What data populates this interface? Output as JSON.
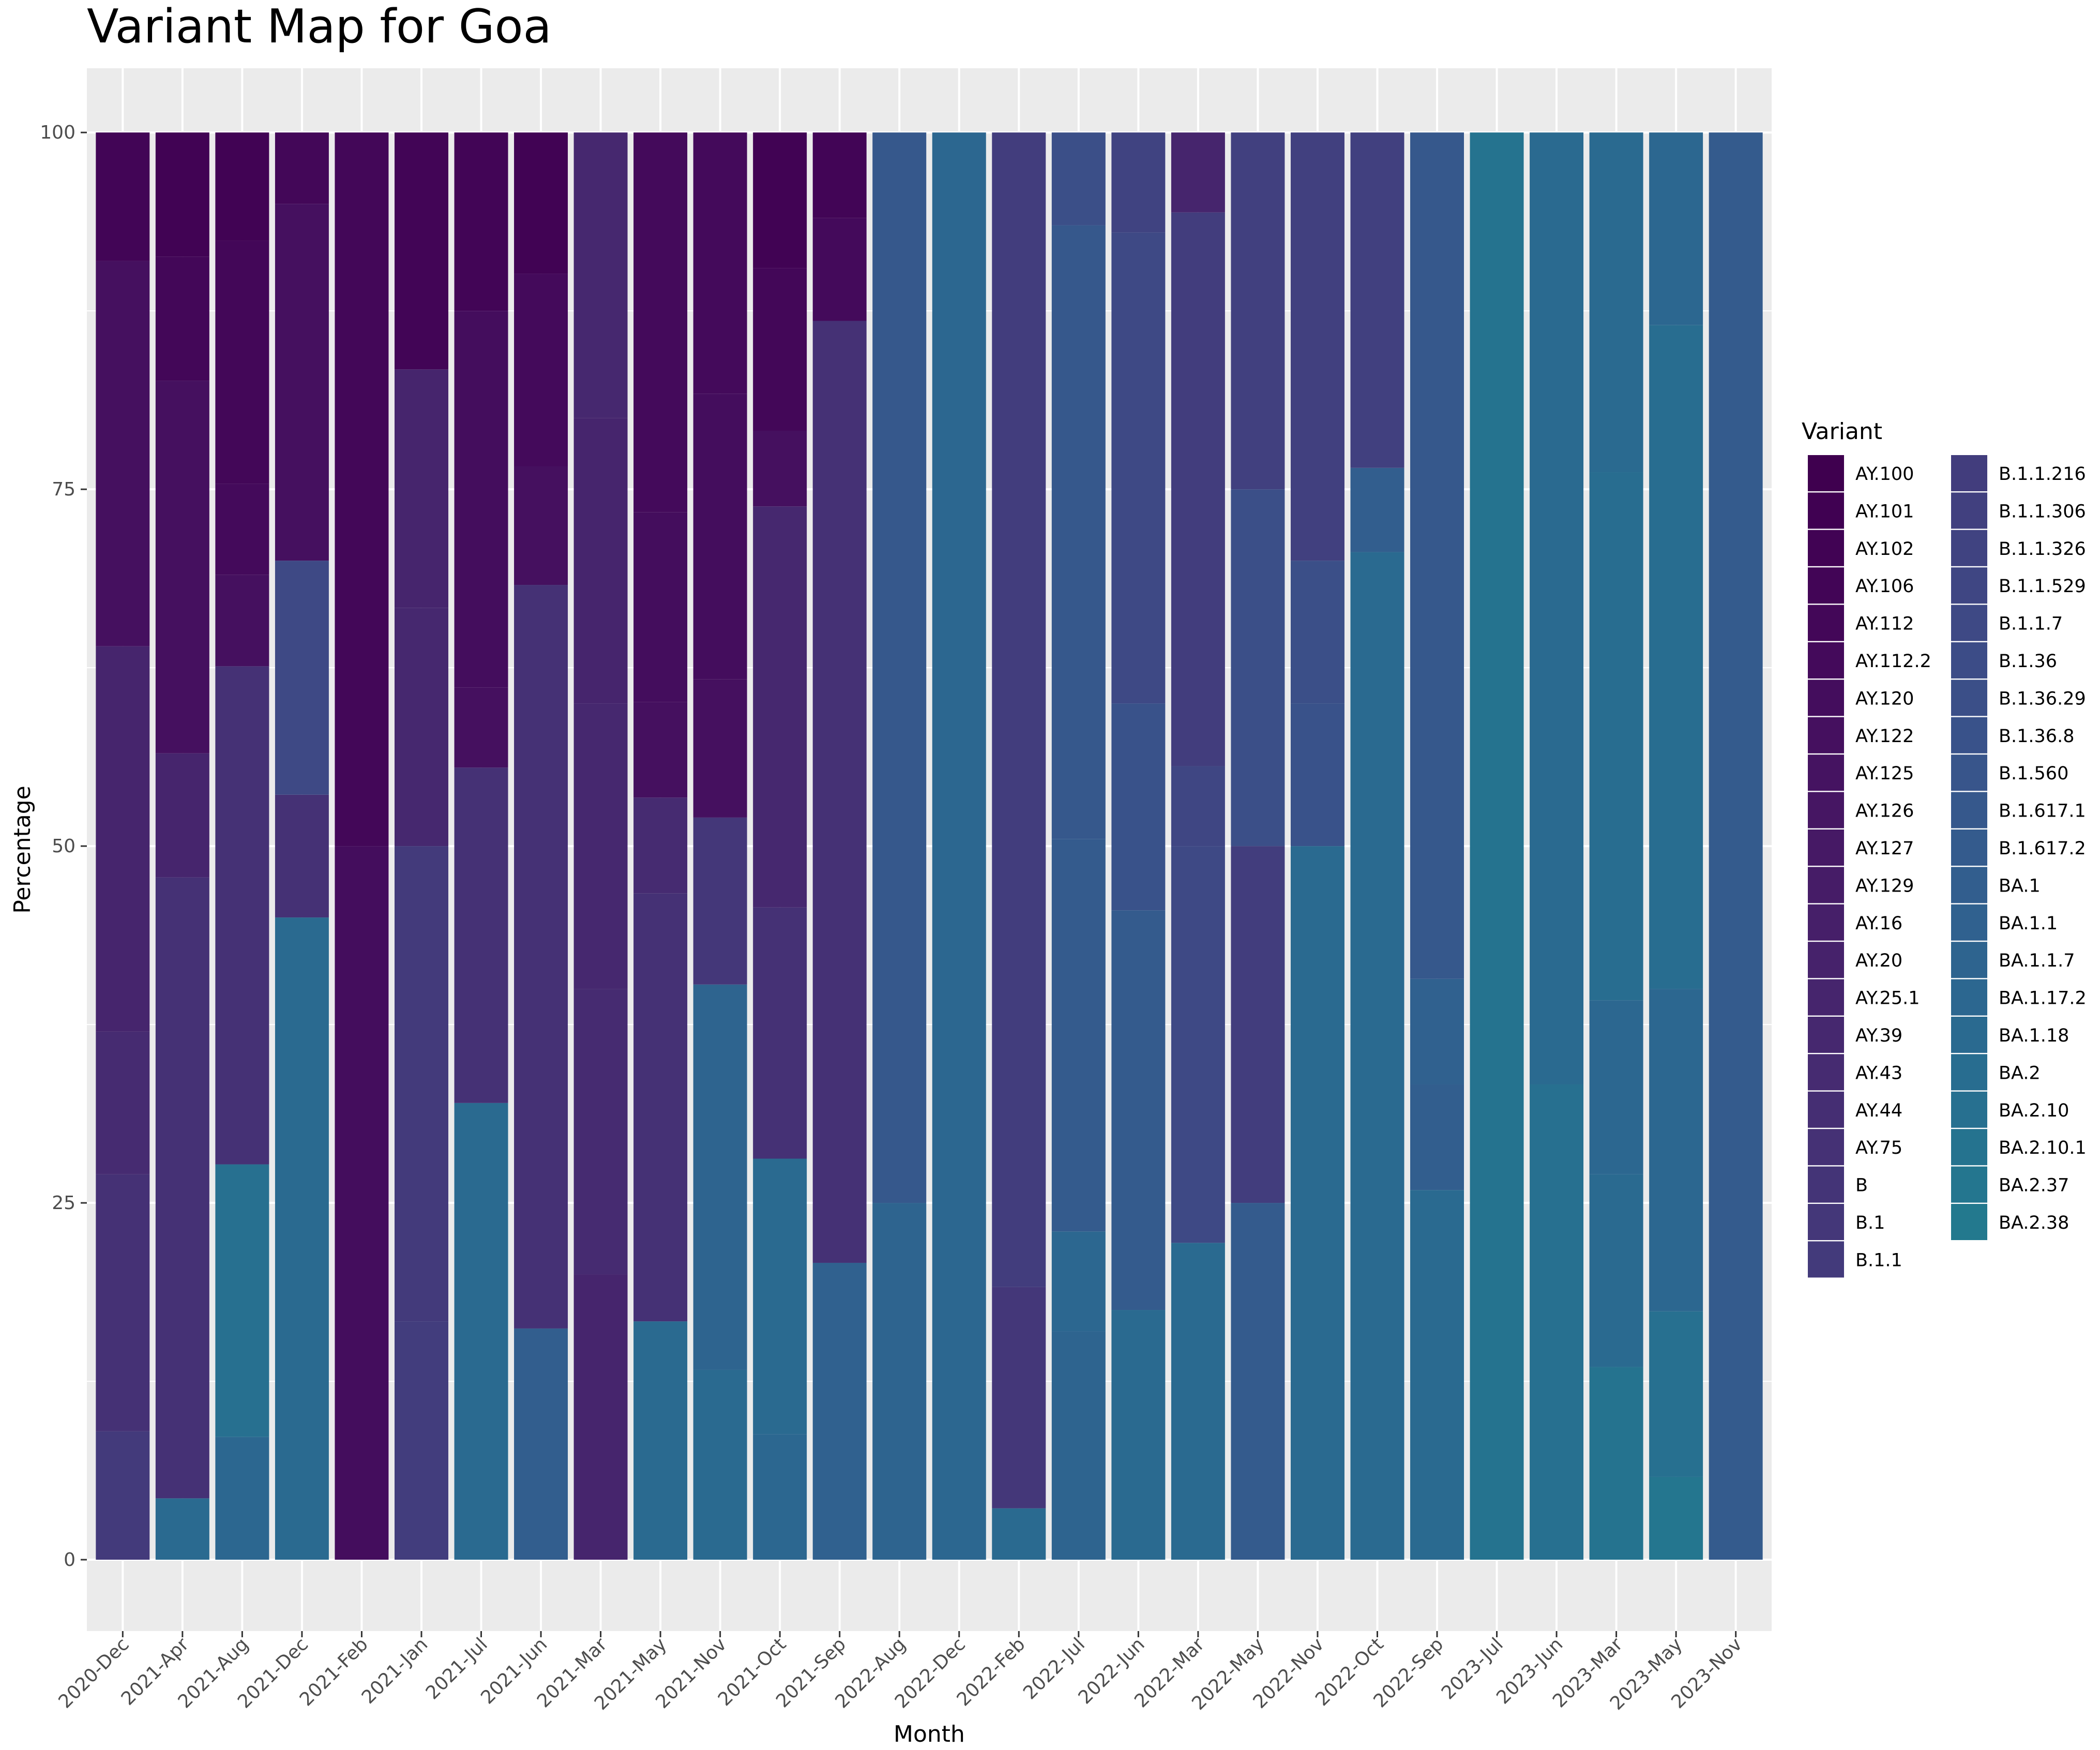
{
  "chart_data": {
    "type": "bar",
    "stacked": true,
    "title": "Variant Map for Goa",
    "xlabel": "Month",
    "ylabel": "Percentage",
    "ylim": [
      -5,
      104.5
    ],
    "yticks": [
      0,
      25,
      50,
      75,
      100
    ],
    "grid": true,
    "legend_position": "right",
    "legend_title": "Variant",
    "categories": [
      "2020-Dec",
      "2021-Apr",
      "2021-Aug",
      "2021-Dec",
      "2021-Feb",
      "2021-Jan",
      "2021-Jul",
      "2021-Jun",
      "2021-Mar",
      "2021-May",
      "2021-Nov",
      "2021-Oct",
      "2021-Sep",
      "2022-Aug",
      "2022-Dec",
      "2022-Feb",
      "2022-Jul",
      "2022-Jun",
      "2022-Mar",
      "2022-May",
      "2022-Nov",
      "2022-Oct",
      "2022-Sep",
      "2023-Jul",
      "2023-Jun",
      "2023-Mar",
      "2023-May",
      "2023-Nov"
    ],
    "variants": [
      {
        "name": "AY.100",
        "color": "#3f004f"
      },
      {
        "name": "AY.101",
        "color": "#400152"
      },
      {
        "name": "AY.102",
        "color": "#410354"
      },
      {
        "name": "AY.106",
        "color": "#420556"
      },
      {
        "name": "AY.112",
        "color": "#430758"
      },
      {
        "name": "AY.112.2",
        "color": "#440a5b"
      },
      {
        "name": "AY.120",
        "color": "#440d5d"
      },
      {
        "name": "AY.122",
        "color": "#45105f"
      },
      {
        "name": "AY.125",
        "color": "#451361"
      },
      {
        "name": "AY.126",
        "color": "#461663"
      },
      {
        "name": "AY.127",
        "color": "#461965"
      },
      {
        "name": "AY.129",
        "color": "#461c67"
      },
      {
        "name": "AY.16",
        "color": "#461f69"
      },
      {
        "name": "AY.20",
        "color": "#46226b"
      },
      {
        "name": "AY.25.1",
        "color": "#46256d"
      },
      {
        "name": "AY.39",
        "color": "#46286f"
      },
      {
        "name": "AY.43",
        "color": "#462b71"
      },
      {
        "name": "AY.44",
        "color": "#452e73"
      },
      {
        "name": "AY.75",
        "color": "#453175"
      },
      {
        "name": "B",
        "color": "#443477"
      },
      {
        "name": "B.1",
        "color": "#443779"
      },
      {
        "name": "B.1.1",
        "color": "#433a7b"
      },
      {
        "name": "B.1.1.216",
        "color": "#423d7d"
      },
      {
        "name": "B.1.1.306",
        "color": "#41407f"
      },
      {
        "name": "B.1.1.326",
        "color": "#404381"
      },
      {
        "name": "B.1.1.529",
        "color": "#3f4683"
      },
      {
        "name": "B.1.1.7",
        "color": "#3e4985"
      },
      {
        "name": "B.1.36",
        "color": "#3c4c87"
      },
      {
        "name": "B.1.36.29",
        "color": "#3b4f88"
      },
      {
        "name": "B.1.36.8",
        "color": "#39528a"
      },
      {
        "name": "B.1.560",
        "color": "#38558b"
      },
      {
        "name": "B.1.617.1",
        "color": "#36588c"
      },
      {
        "name": "B.1.617.2",
        "color": "#345b8d"
      },
      {
        "name": "BA.1",
        "color": "#325e8e"
      },
      {
        "name": "BA.1.1",
        "color": "#30618f"
      },
      {
        "name": "BA.1.1.7",
        "color": "#2e648f"
      },
      {
        "name": "BA.1.17.2",
        "color": "#2c6790"
      },
      {
        "name": "BA.1.18",
        "color": "#2a6a90"
      },
      {
        "name": "BA.2",
        "color": "#286d90"
      },
      {
        "name": "BA.2.10",
        "color": "#277090"
      },
      {
        "name": "BA.2.10.1",
        "color": "#25738f"
      },
      {
        "name": "BA.2.37",
        "color": "#24768f"
      },
      {
        "name": "BA.2.38",
        "color": "#23798e"
      }
    ],
    "stacks": [
      [
        {
          "v": "B.1.1",
          "y": 9
        },
        {
          "v": "AY.75",
          "y": 18
        },
        {
          "v": "AY.43",
          "y": 10
        },
        {
          "v": "AY.25.1",
          "y": 27
        },
        {
          "v": "AY.122",
          "y": 27
        },
        {
          "v": "AY.106",
          "y": 9
        }
      ],
      [
        {
          "v": "BA.1.18",
          "y": 4.3
        },
        {
          "v": "AY.75",
          "y": 43.5
        },
        {
          "v": "AY.25.1",
          "y": 8.7
        },
        {
          "v": "AY.122",
          "y": 26.1
        },
        {
          "v": "AY.112",
          "y": 8.7
        },
        {
          "v": "AY.102",
          "y": 8.7
        }
      ],
      [
        {
          "v": "BA.1.17.2",
          "y": 8.6
        },
        {
          "v": "BA.2.10",
          "y": 19.1
        },
        {
          "v": "AY.75",
          "y": 34.9
        },
        {
          "v": "AY.122",
          "y": 6.4
        },
        {
          "v": "AY.112.2",
          "y": 6.4
        },
        {
          "v": "AY.112",
          "y": 17.0
        },
        {
          "v": "AY.102",
          "y": 7.6
        }
      ],
      [
        {
          "v": "BA.1.18",
          "y": 45
        },
        {
          "v": "AY.75",
          "y": 8.6
        },
        {
          "v": "B.1.1.7",
          "y": 16.4
        },
        {
          "v": "AY.122",
          "y": 25.0
        },
        {
          "v": "AY.112",
          "y": 5.0
        }
      ],
      [
        {
          "v": "AY.120",
          "y": 50
        },
        {
          "v": "AY.112",
          "y": 50
        }
      ],
      [
        {
          "v": "B.1.1.216",
          "y": 16.7
        },
        {
          "v": "B.1.1",
          "y": 33.3
        },
        {
          "v": "AY.39",
          "y": 16.7
        },
        {
          "v": "AY.25.1",
          "y": 16.7
        },
        {
          "v": "AY.106",
          "y": 16.6
        }
      ],
      [
        {
          "v": "BA.1.18",
          "y": 32
        },
        {
          "v": "AY.75",
          "y": 23.5
        },
        {
          "v": "AY.122",
          "y": 5.6
        },
        {
          "v": "AY.120",
          "y": 26.4
        },
        {
          "v": "AY.106",
          "y": 12.5
        }
      ],
      [
        {
          "v": "BA.1",
          "y": 16.2
        },
        {
          "v": "AY.75",
          "y": 52.1
        },
        {
          "v": "AY.122",
          "y": 8.3
        },
        {
          "v": "AY.112.2",
          "y": 13.5
        },
        {
          "v": "AY.102",
          "y": 9.9
        }
      ],
      [
        {
          "v": "AY.25.1",
          "y": 20
        },
        {
          "v": "AY.43",
          "y": 20
        },
        {
          "v": "AY.39",
          "y": 20
        },
        {
          "v": "AY.25.1",
          "y": 20
        },
        {
          "v": "AY.39",
          "y": 20
        }
      ],
      [
        {
          "v": "BA.1.18",
          "y": 16.7
        },
        {
          "v": "AY.75",
          "y": 30
        },
        {
          "v": "AY.43",
          "y": 6.7
        },
        {
          "v": "AY.122",
          "y": 6.7
        },
        {
          "v": "AY.120",
          "y": 13.3
        },
        {
          "v": "AY.112.2",
          "y": 26.6
        }
      ],
      [
        {
          "v": "BA.1.18",
          "y": 13.3
        },
        {
          "v": "BA.1.1.7",
          "y": 27
        },
        {
          "v": "B.1",
          "y": 11.7
        },
        {
          "v": "AY.122",
          "y": 9.7
        },
        {
          "v": "AY.120",
          "y": 20
        },
        {
          "v": "AY.112.2",
          "y": 18.3
        }
      ],
      [
        {
          "v": "BA.1.17.2",
          "y": 8.8
        },
        {
          "v": "BA.1.18",
          "y": 19.3
        },
        {
          "v": "AY.75",
          "y": 17.6
        },
        {
          "v": "AY.39",
          "y": 28.1
        },
        {
          "v": "AY.122",
          "y": 5.3
        },
        {
          "v": "AY.112",
          "y": 11.4
        },
        {
          "v": "AY.102",
          "y": 9.5
        }
      ],
      [
        {
          "v": "BA.1.1",
          "y": 20.8
        },
        {
          "v": "AY.75",
          "y": 66
        },
        {
          "v": "AY.112.2",
          "y": 7.2
        },
        {
          "v": "AY.106",
          "y": 6
        }
      ],
      [
        {
          "v": "BA.1.1.7",
          "y": 25
        },
        {
          "v": "B.1.617.1",
          "y": 75
        }
      ],
      [
        {
          "v": "BA.1.17.2",
          "y": 100
        }
      ],
      [
        {
          "v": "BA.1.18",
          "y": 3.6
        },
        {
          "v": "B.1",
          "y": 15.5
        },
        {
          "v": "B.1.1.216",
          "y": 80.9
        }
      ],
      [
        {
          "v": "BA.1.1.7",
          "y": 16
        },
        {
          "v": "BA.1.17.2",
          "y": 7
        },
        {
          "v": "B.1.617.2",
          "y": 27.5
        },
        {
          "v": "B.1.617.1",
          "y": 43
        },
        {
          "v": "B.1.36.29",
          "y": 6.5
        }
      ],
      [
        {
          "v": "BA.1.18",
          "y": 17.5
        },
        {
          "v": "B.1.617.2",
          "y": 28
        },
        {
          "v": "B.1.36.8",
          "y": 14.5
        },
        {
          "v": "B.1.1.7",
          "y": 33
        },
        {
          "v": "B.1.1.326",
          "y": 7
        }
      ],
      [
        {
          "v": "BA.1.18",
          "y": 22.2
        },
        {
          "v": "B.1.1.7",
          "y": 27.8
        },
        {
          "v": "B.1.1.529",
          "y": 5.6
        },
        {
          "v": "B.1.1.216",
          "y": 38.8
        },
        {
          "v": "AY.25.1",
          "y": 5.6
        }
      ],
      [
        {
          "v": "B.1.617.2",
          "y": 25
        },
        {
          "v": "B.1.1.216",
          "y": 25
        },
        {
          "v": "B.1.36.29",
          "y": 25
        },
        {
          "v": "B.1.1.306",
          "y": 25
        }
      ],
      [
        {
          "v": "BA.1.18",
          "y": 50
        },
        {
          "v": "B.1.36.8",
          "y": 10
        },
        {
          "v": "B.1.36.29",
          "y": 10
        },
        {
          "v": "B.1.1.306",
          "y": 30
        }
      ],
      [
        {
          "v": "BA.1.18",
          "y": 70.6
        },
        {
          "v": "BA.1",
          "y": 5.9
        },
        {
          "v": "B.1.1.306",
          "y": 23.5
        }
      ],
      [
        {
          "v": "BA.1.18",
          "y": 25.9
        },
        {
          "v": "BA.1",
          "y": 7.4
        },
        {
          "v": "BA.1.1",
          "y": 7.4
        },
        {
          "v": "B.1.617.1",
          "y": 59.3
        }
      ],
      [
        {
          "v": "BA.2.10.1",
          "y": 100
        }
      ],
      [
        {
          "v": "BA.2.10",
          "y": 33.3
        },
        {
          "v": "BA.1.18",
          "y": 66.7
        }
      ],
      [
        {
          "v": "BA.2.10.1",
          "y": 13.5
        },
        {
          "v": "BA.1.18",
          "y": 13.5
        },
        {
          "v": "BA.1.17.2",
          "y": 12.2
        },
        {
          "v": "BA.2",
          "y": 37
        },
        {
          "v": "BA.1.18",
          "y": 23.8
        }
      ],
      [
        {
          "v": "BA.2.37",
          "y": 5.8
        },
        {
          "v": "BA.2.10",
          "y": 11.6
        },
        {
          "v": "BA.1.17.2",
          "y": 22.6
        },
        {
          "v": "BA.2",
          "y": 46.5
        },
        {
          "v": "BA.1.17.2",
          "y": 13.5
        }
      ],
      [
        {
          "v": "B.1.617.2",
          "y": 100
        }
      ]
    ]
  }
}
